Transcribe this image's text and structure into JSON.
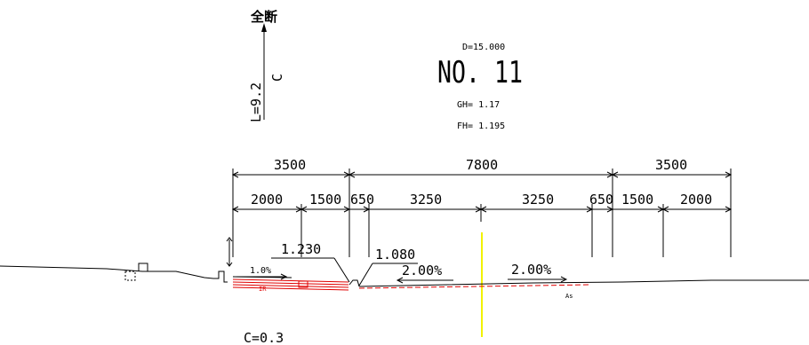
{
  "drawing": {
    "section_label": "全断",
    "length_label": "L=9.2",
    "center_label": "C",
    "distance": "D=15.000",
    "station": "NO. 11",
    "ground_height": "GH= 1.17",
    "formation_height": "FH=  1.195",
    "overall_dims": [
      "3500",
      "7800",
      "3500"
    ],
    "detail_dims": [
      "2000",
      "1500",
      "650",
      "3250",
      "3250",
      "650",
      "1500",
      "2000"
    ],
    "heights": {
      "left_edge": "1.230",
      "left_carriageway": "1.080"
    },
    "slopes": {
      "sidewalk": "1.0%",
      "left_lane": "2.00%",
      "right_lane": "2.00%"
    },
    "material_tags": {
      "left": "IR",
      "right": "As"
    },
    "camber": "C=0.3"
  },
  "colors": {
    "line": "#000000",
    "red_pavement": "#e00000",
    "centerline": "#f2f200"
  }
}
